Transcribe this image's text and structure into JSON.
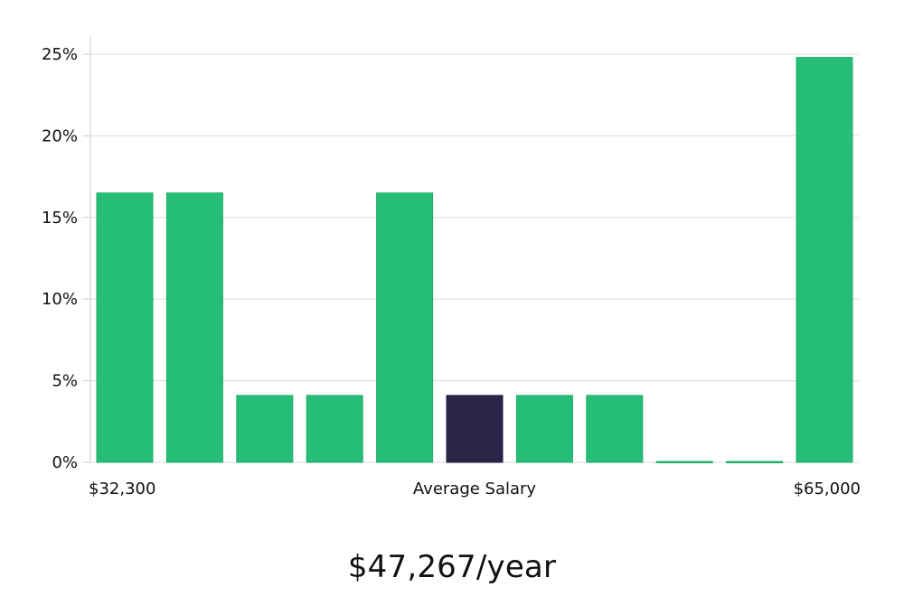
{
  "chart_data": {
    "type": "bar",
    "title": "",
    "xlabel": "Average Salary",
    "ylabel": "",
    "x_start_label": "$32,300",
    "x_end_label": "$65,000",
    "ylim": [
      0,
      25
    ],
    "y_ticks": [
      0,
      5,
      10,
      15,
      20,
      25
    ],
    "y_tick_labels": [
      "0%",
      "5%",
      "10%",
      "15%",
      "20%",
      "25%"
    ],
    "values": [
      16.5,
      16.5,
      4.1,
      4.1,
      16.5,
      4.1,
      4.1,
      4.1,
      0,
      0,
      24.8
    ],
    "highlight_index": 5,
    "grid": true,
    "colors": {
      "bar": "#26bd76",
      "bar_stroke": "#1fae6a",
      "highlight": "#2b2549",
      "grid": "#dddddd",
      "axis": "#cccccc"
    }
  },
  "summary": {
    "average_text": "$47,267/year"
  }
}
